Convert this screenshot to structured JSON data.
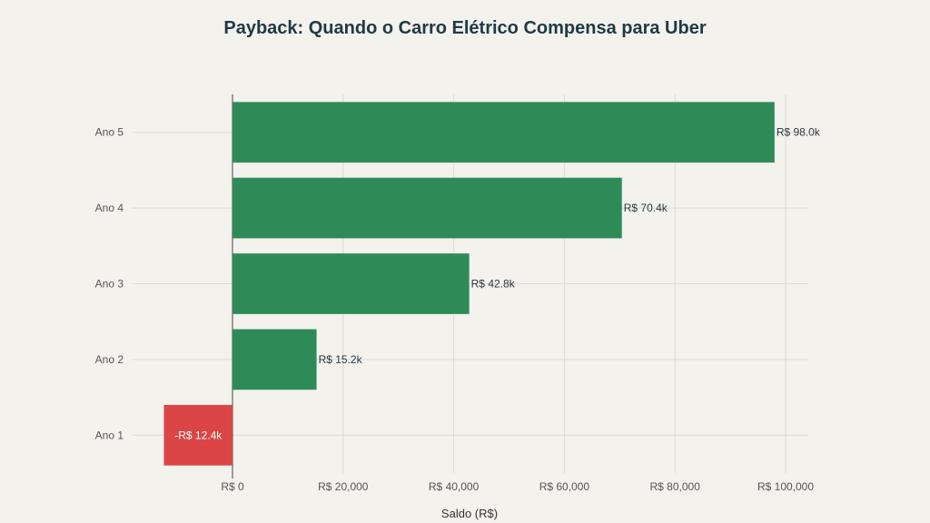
{
  "chart_data": {
    "type": "bar",
    "orientation": "horizontal",
    "title": "Payback: Quando o Carro Elétrico Compensa para Uber",
    "xlabel": "Saldo (R$)",
    "ylabel": "",
    "categories": [
      "Ano 1",
      "Ano 2",
      "Ano 3",
      "Ano 4",
      "Ano 5"
    ],
    "values": [
      -12400,
      15200,
      42800,
      70400,
      98000
    ],
    "data_labels": [
      "-R$ 12.4k",
      "R$ 15.2k",
      "R$ 42.8k",
      "R$ 70.4k",
      "R$ 98.0k"
    ],
    "xlim": [
      -18000,
      104000
    ],
    "xticks": [
      0,
      20000,
      40000,
      60000,
      80000,
      100000
    ],
    "xtick_labels": [
      "R$ 0",
      "R$ 20,000",
      "R$ 40,000",
      "R$ 60,000",
      "R$ 80,000",
      "R$ 100,000"
    ],
    "grid": true,
    "legend": "none",
    "colors": {
      "positive": "#2e8b57",
      "negative": "#db4545",
      "background": "#f3f2ed"
    }
  }
}
